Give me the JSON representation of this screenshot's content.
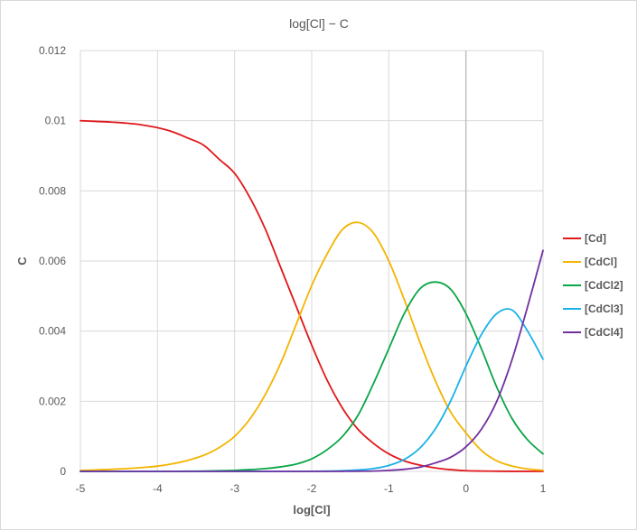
{
  "chart_data": {
    "type": "line",
    "title": "log[Cl] − C",
    "xlabel": "log[Cl]",
    "ylabel": "C",
    "xlim": [
      -5,
      1
    ],
    "ylim": [
      0,
      0.012
    ],
    "x_ticks": [
      -5,
      -4,
      -3,
      -2,
      -1,
      0,
      1
    ],
    "y_ticks": [
      0,
      0.002,
      0.004,
      0.006,
      0.008,
      0.01,
      0.012
    ],
    "x_tick_labels": [
      "-5",
      "-4",
      "-3",
      "-2",
      "-1",
      "0",
      "1"
    ],
    "y_tick_labels": [
      "0",
      "0.002",
      "0.004",
      "0.006",
      "0.008",
      "0.01",
      "0.012"
    ],
    "grid": true,
    "legend_position": "right",
    "x": [
      -5,
      -4.8,
      -4.6,
      -4.4,
      -4.2,
      -4,
      -3.8,
      -3.6,
      -3.4,
      -3.2,
      -3,
      -2.8,
      -2.6,
      -2.4,
      -2.2,
      -2,
      -1.8,
      -1.6,
      -1.4,
      -1.2,
      -1,
      -0.8,
      -0.6,
      -0.4,
      -0.2,
      0,
      0.2,
      0.4,
      0.6,
      0.8,
      1
    ],
    "series": [
      {
        "name": "[Cd]",
        "color": "#e0181a",
        "values": [
          0.01,
          0.00998,
          0.00996,
          0.00993,
          0.00988,
          0.0098,
          0.00968,
          0.0095,
          0.0093,
          0.0089,
          0.0085,
          0.0078,
          0.0069,
          0.0058,
          0.0047,
          0.0036,
          0.0026,
          0.0018,
          0.0012,
          0.0008,
          0.0005,
          0.0003,
          0.00018,
          0.0001,
          5e-05,
          2e-05,
          1e-05,
          5e-06,
          2e-06,
          1e-06,
          5e-07
        ]
      },
      {
        "name": "[CdCl]",
        "color": "#f4b400",
        "values": [
          3e-05,
          4e-05,
          6e-05,
          8e-05,
          0.00011,
          0.00015,
          0.00022,
          0.00032,
          0.00046,
          0.00068,
          0.001,
          0.0015,
          0.0022,
          0.0031,
          0.0042,
          0.0053,
          0.0062,
          0.0069,
          0.0071,
          0.0068,
          0.006,
          0.0049,
          0.0037,
          0.0026,
          0.0017,
          0.0011,
          0.0006,
          0.0003,
          0.00015,
          7e-05,
          3e-05
        ]
      },
      {
        "name": "[CdCl2]",
        "color": "#0aa547",
        "values": [
          0,
          0,
          0,
          0,
          0,
          0,
          2e-06,
          5e-06,
          1e-05,
          2e-05,
          3e-05,
          5e-05,
          8e-05,
          0.00013,
          0.00021,
          0.00036,
          0.00062,
          0.001,
          0.0016,
          0.0025,
          0.0035,
          0.0045,
          0.0052,
          0.0054,
          0.0052,
          0.0045,
          0.0035,
          0.0024,
          0.0015,
          0.0009,
          0.0005
        ]
      },
      {
        "name": "[CdCl3]",
        "color": "#1ab2e8",
        "values": [
          0,
          0,
          0,
          0,
          0,
          0,
          0,
          0,
          0,
          0,
          0,
          0,
          0,
          0,
          1e-06,
          3e-06,
          8e-06,
          2e-05,
          4e-05,
          8e-05,
          0.00017,
          0.00034,
          0.00066,
          0.0012,
          0.002,
          0.003,
          0.0039,
          0.0045,
          0.0046,
          0.004,
          0.0032
        ]
      },
      {
        "name": "[CdCl4]",
        "color": "#7030a0",
        "values": [
          0,
          0,
          0,
          0,
          0,
          0,
          0,
          0,
          0,
          0,
          0,
          0,
          0,
          0,
          0,
          0,
          0,
          2e-06,
          5e-06,
          1e-05,
          3e-05,
          6e-05,
          0.00012,
          0.00024,
          0.0004,
          0.0007,
          0.0012,
          0.002,
          0.0032,
          0.0047,
          0.0063
        ]
      }
    ]
  }
}
